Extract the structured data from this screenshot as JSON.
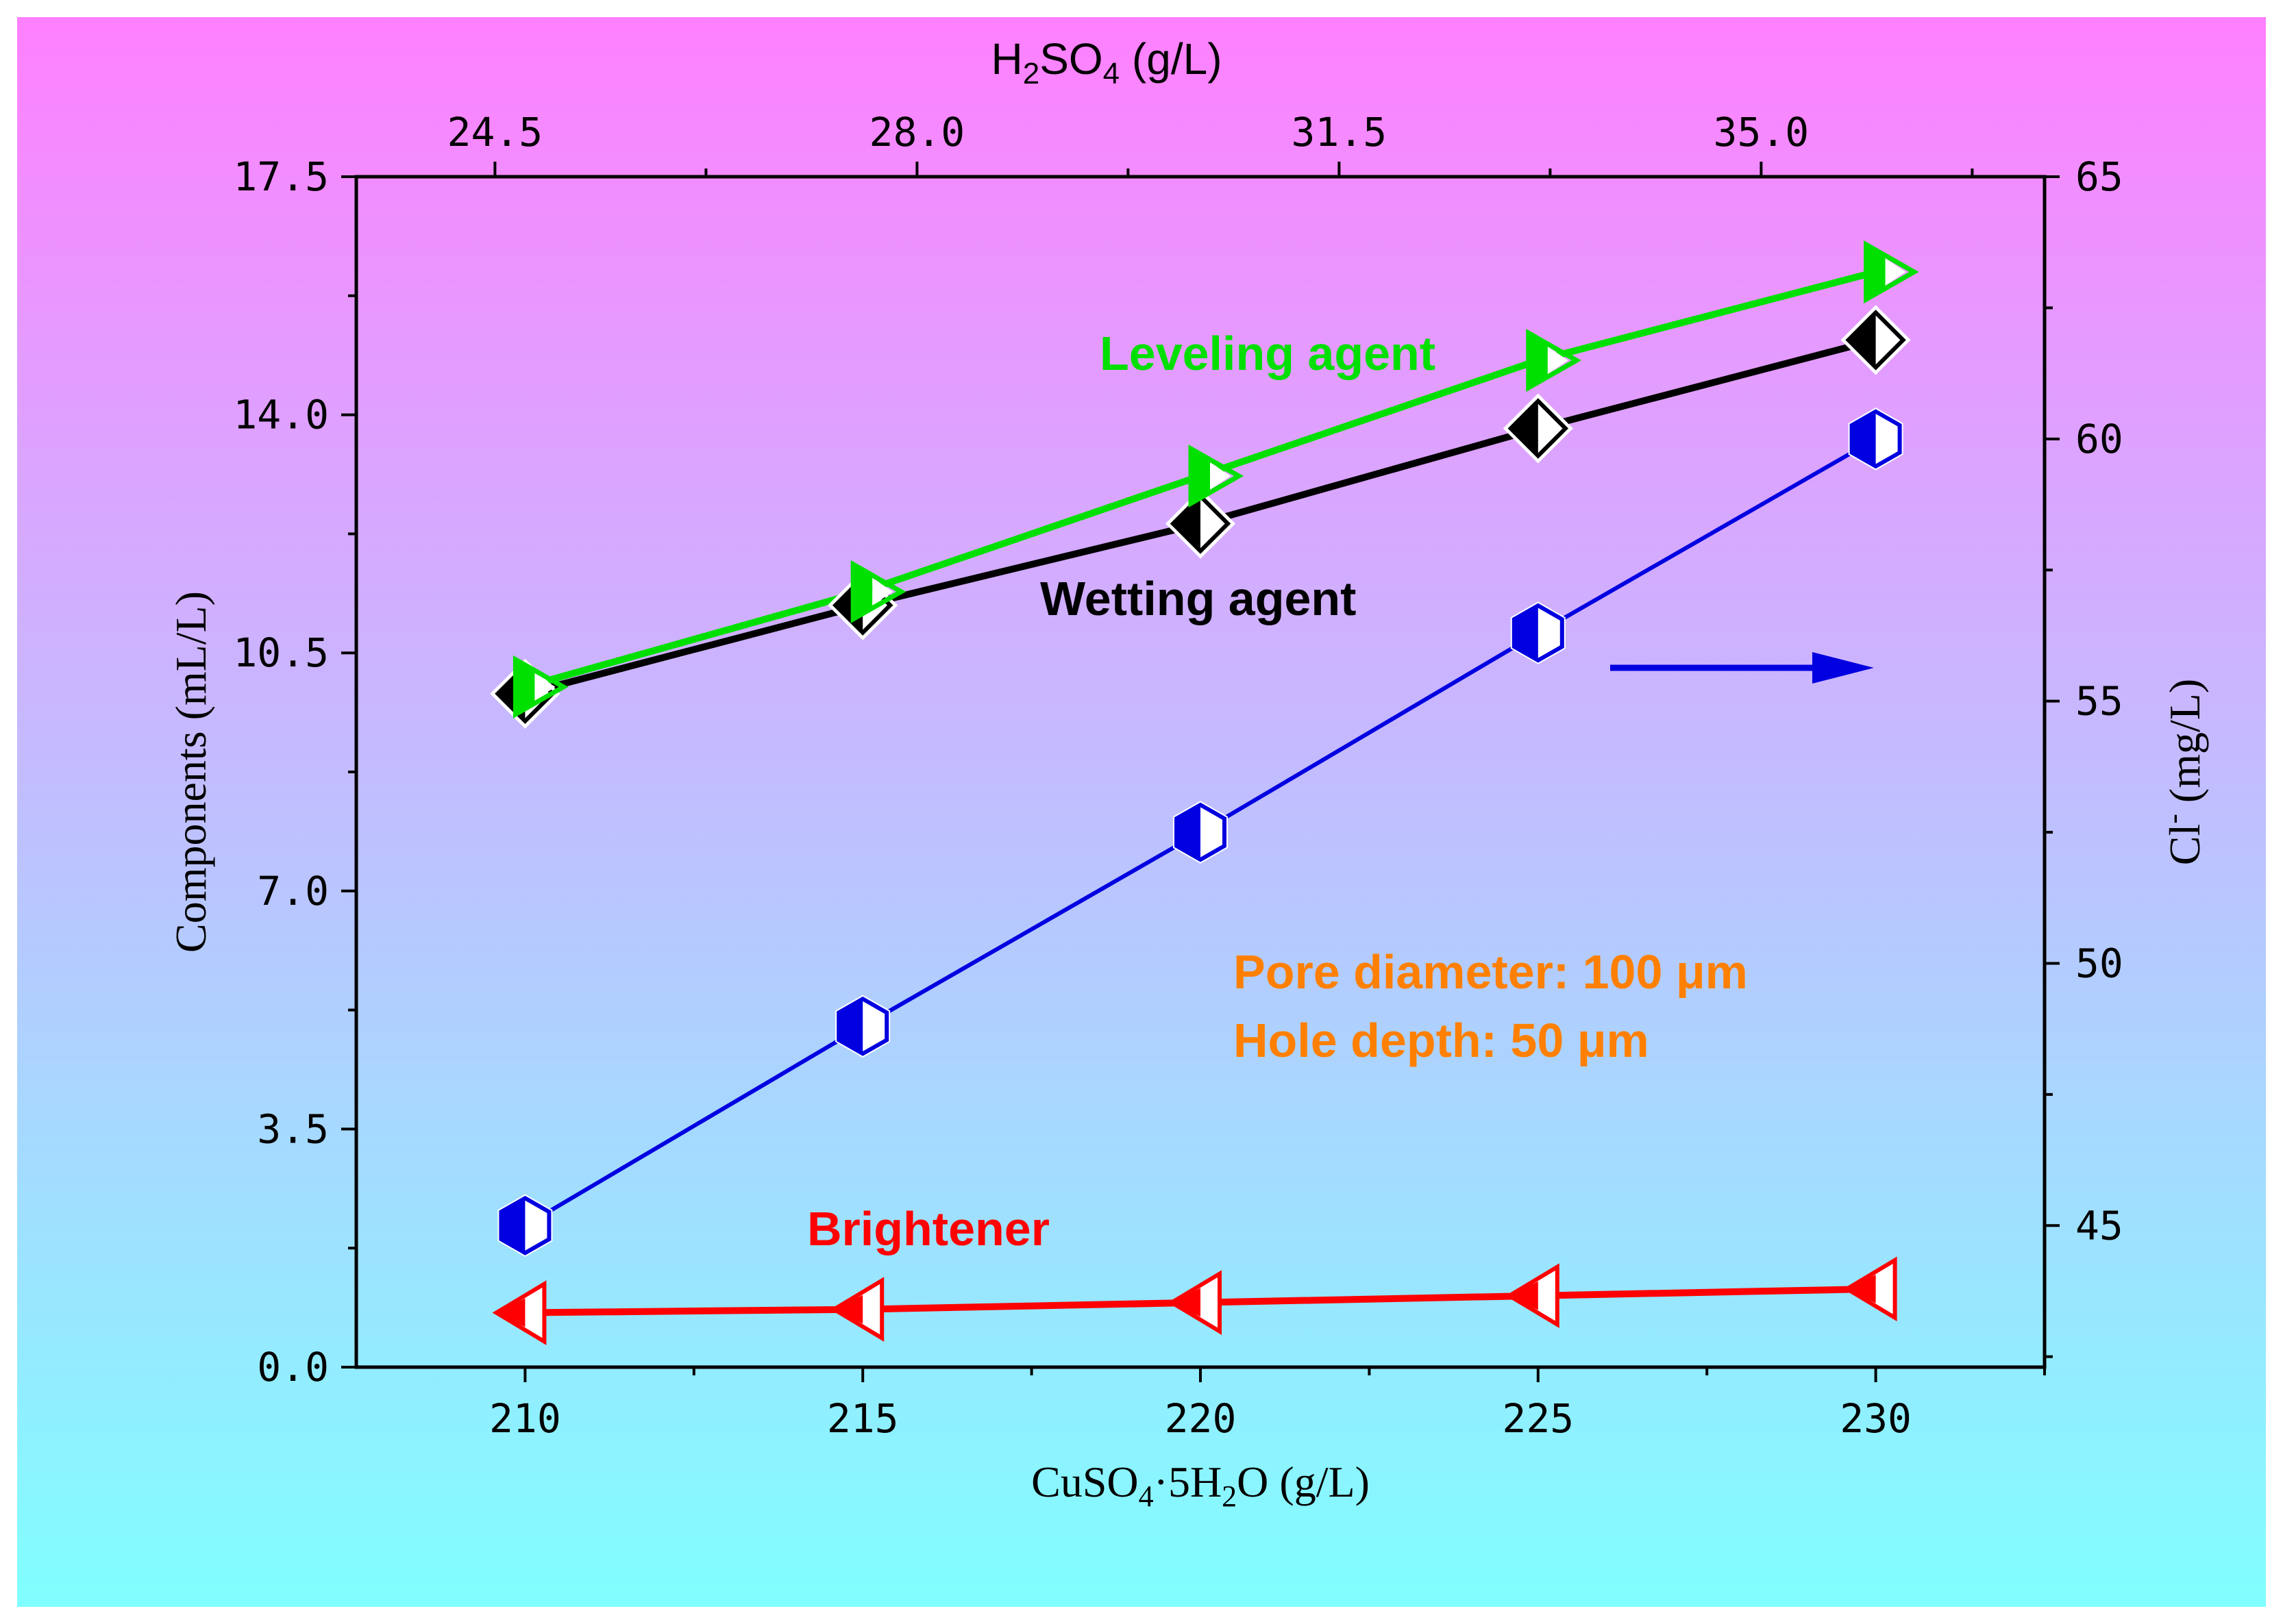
{
  "chart_data": {
    "type": "line",
    "x_bottom": {
      "label_main": "CuSO",
      "label_sub1": "4",
      "label_mid": "·5H",
      "label_sub2": "2",
      "label_end": "O (g/L)",
      "ticks": [
        "210",
        "215",
        "220",
        "225",
        "230"
      ],
      "tick_values": [
        210,
        215,
        220,
        225,
        230
      ],
      "range": [
        207.5,
        232.5
      ]
    },
    "x_top": {
      "label_main": "H",
      "label_sub1": "2",
      "label_mid": "SO",
      "label_sub2": "4",
      "label_end": " (g/L)",
      "ticks": [
        "24.5",
        "28.0",
        "31.5",
        "35.0"
      ],
      "tick_values": [
        24.5,
        28.0,
        31.5,
        35.0
      ],
      "range": [
        23.35,
        37.35
      ]
    },
    "y_left": {
      "label": "Components (mL/L)",
      "ticks": [
        "0.0",
        "3.5",
        "7.0",
        "10.5",
        "14.0",
        "17.5"
      ],
      "tick_values": [
        0,
        3.5,
        7,
        10.5,
        14,
        17.5
      ],
      "range": [
        0,
        17.5
      ]
    },
    "y_right": {
      "label_main": "Cl",
      "label_sup": "-",
      "label_end": " (mg/L)",
      "ticks": [
        "45",
        "50",
        "55",
        "60",
        "65"
      ],
      "tick_values": [
        45,
        50,
        55,
        60,
        65
      ],
      "range": [
        42.3,
        65
      ]
    },
    "x": [
      210,
      215,
      220,
      225,
      230
    ],
    "series": [
      {
        "name": "Leveling agent",
        "axis": "left",
        "color": "#00e000",
        "marker": "triangle-right",
        "values": [
          10.0,
          11.4,
          13.1,
          14.8,
          16.1
        ]
      },
      {
        "name": "Wetting agent",
        "axis": "left",
        "color": "#000000",
        "marker": "diamond",
        "values": [
          9.9,
          11.2,
          12.4,
          13.8,
          15.1
        ]
      },
      {
        "name": "Cl-",
        "axis": "right",
        "color": "#0000e0",
        "marker": "hexagon",
        "values": [
          45.0,
          48.8,
          52.5,
          56.3,
          60.0
        ]
      },
      {
        "name": "Brightener",
        "axis": "left",
        "color": "#ff0000",
        "marker": "triangle-left",
        "values": [
          0.8,
          0.85,
          0.95,
          1.05,
          1.15
        ]
      }
    ],
    "annotations": {
      "leveling": "Leveling agent",
      "wetting": "Wetting agent",
      "brightener": "Brightener",
      "pore": "Pore diameter: 100 μm",
      "depth": "Hole depth: 50 μm"
    },
    "colors": {
      "background_top": "#ff80ff",
      "background_bottom": "#80ffff",
      "leveling": "#00e000",
      "wetting": "#000000",
      "chloride": "#0000e0",
      "brightener": "#ff0000",
      "annotation": "#ff8000"
    }
  }
}
